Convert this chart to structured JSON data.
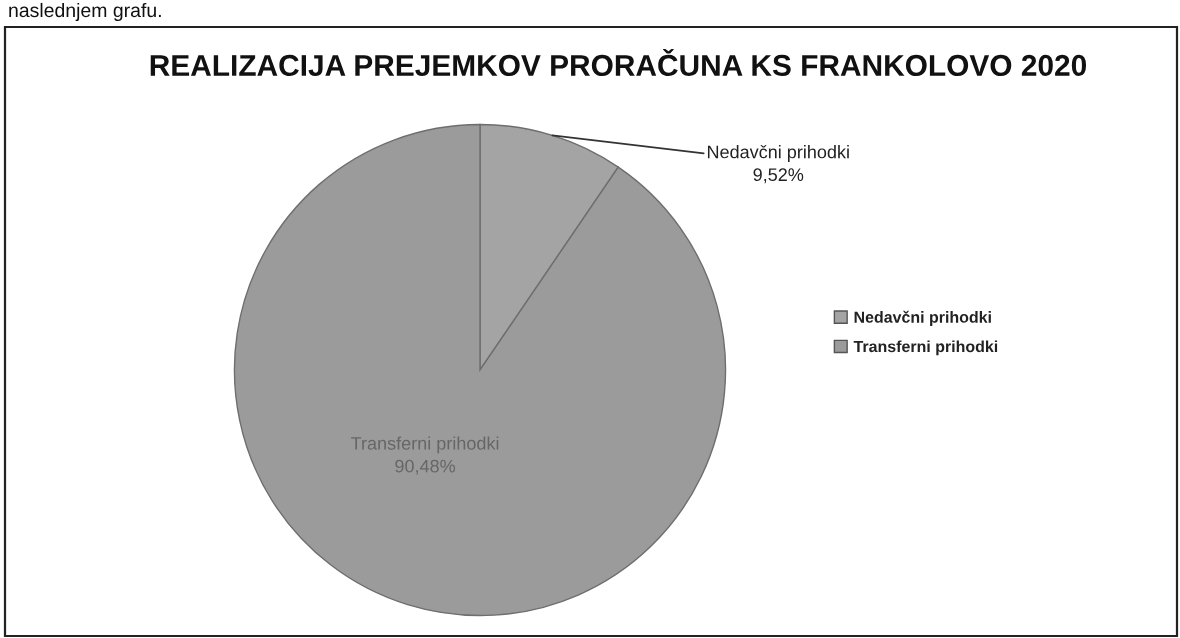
{
  "chart_data": {
    "type": "pie",
    "title": "REALIZACIJA PREJEMKOV PRORAČUNA KS FRANKOLOVO 2020",
    "categories": [
      "Nedavčni prihodki",
      "Transferni prihodki"
    ],
    "values": [
      9.52,
      90.48
    ],
    "value_labels": [
      "9,52%",
      "90,48%"
    ],
    "colors": [
      "#a4a4a4",
      "#9b9b9b"
    ],
    "legend": "right",
    "annotations": [
      "naslednjem grafu."
    ]
  }
}
